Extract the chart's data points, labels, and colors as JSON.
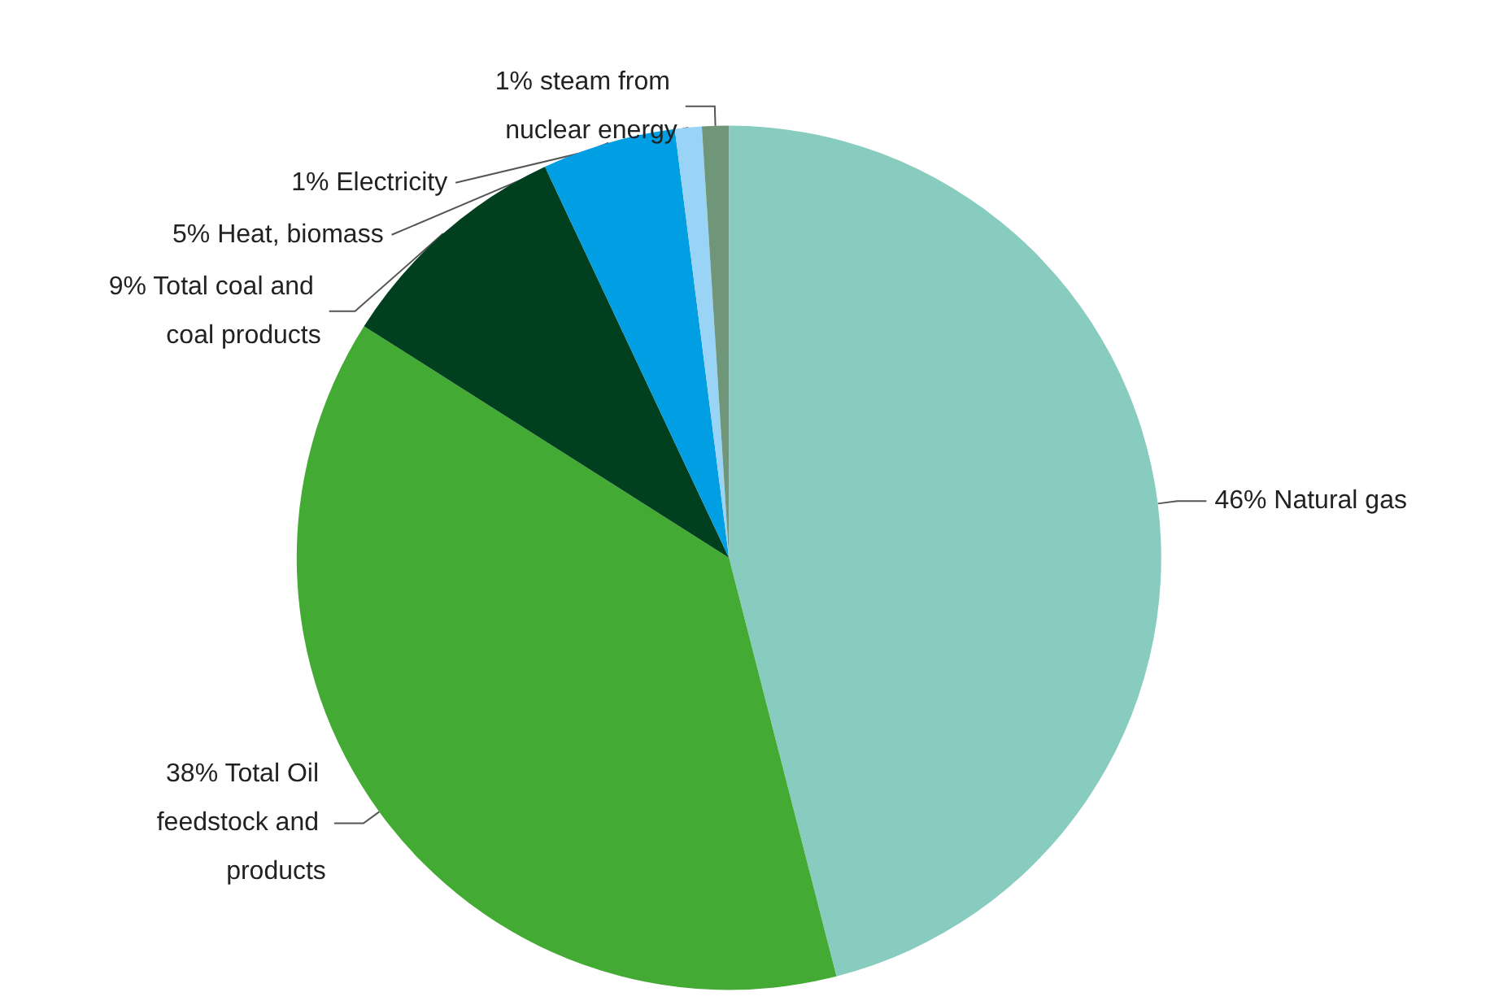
{
  "chart_data": {
    "type": "pie",
    "categories": [
      "Natural gas",
      "Total Oil feedstock and products",
      "Total coal and coal products",
      "Heat, biomass",
      "Electricity",
      "steam from nuclear energy"
    ],
    "values": [
      46,
      38,
      9,
      5,
      1,
      1
    ],
    "colors": [
      "#88cbbf",
      "#43ab34",
      "#00401f",
      "#009fe3",
      "#99d3f5",
      "#6f9679"
    ],
    "value_labels": [
      "46%",
      "38%",
      "9%",
      "5%",
      "1%",
      "1%"
    ],
    "legend": false
  }
}
